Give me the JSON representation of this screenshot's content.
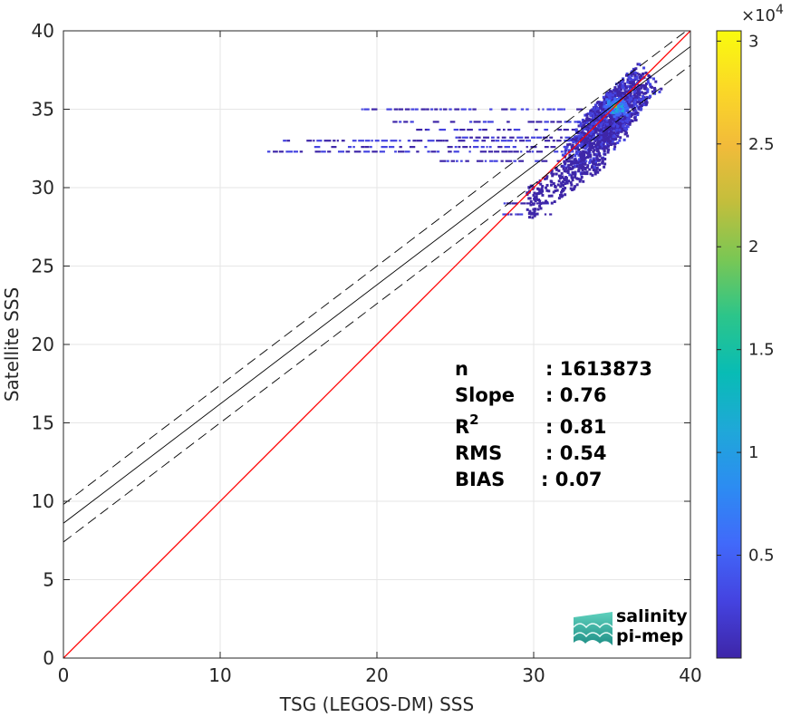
{
  "chart_data": {
    "type": "heatmap",
    "xlabel": "TSG (LEGOS-DM) SSS",
    "ylabel": "Satellite SSS",
    "xlim": [
      0,
      40
    ],
    "ylim": [
      0,
      40
    ],
    "xticks": [
      0,
      10,
      20,
      30,
      40
    ],
    "yticks": [
      0,
      5,
      10,
      15,
      20,
      25,
      30,
      35,
      40
    ],
    "grid": true,
    "density_core": [
      {
        "x": 33.5,
        "y": 32.5
      },
      {
        "x": 34.5,
        "y": 34.0
      },
      {
        "x": 35.2,
        "y": 35.2
      },
      {
        "x": 36.0,
        "y": 35.8
      }
    ],
    "density_peak": {
      "x": 35.2,
      "y": 35.2
    },
    "horizontal_streaks": [
      {
        "y": 35.0,
        "x": [
          19.0,
          36.0
        ]
      },
      {
        "y": 34.2,
        "x": [
          21.0,
          36.0
        ]
      },
      {
        "y": 33.7,
        "x": [
          22.5,
          35.5
        ]
      },
      {
        "y": 33.2,
        "x": [
          25.0,
          35.0
        ]
      },
      {
        "y": 33.0,
        "x": [
          14.0,
          34.5
        ]
      },
      {
        "y": 32.6,
        "x": [
          16.0,
          34.0
        ]
      },
      {
        "y": 32.3,
        "x": [
          13.0,
          33.5
        ]
      },
      {
        "y": 31.7,
        "x": [
          24.0,
          34.0
        ]
      },
      {
        "y": 29.0,
        "x": [
          27.5,
          31.0
        ]
      },
      {
        "y": 28.3,
        "x": [
          28.0,
          31.0
        ]
      }
    ],
    "reference_line": {
      "slope": 1,
      "intercept": 0,
      "color": "#ff0000"
    },
    "fit_line": {
      "slope": 0.76,
      "intercept": 8.6
    },
    "fit_band": {
      "slope": 0.76,
      "offsets": [
        1.2,
        -1.2
      ]
    },
    "colorbar": {
      "min": 0,
      "max": 30500,
      "ticks": [
        5000,
        10000,
        15000,
        20000,
        25000,
        30000
      ],
      "tick_labels": [
        "0.5",
        "1",
        "1.5",
        "2",
        "2.5",
        "3"
      ],
      "exponent_label": "×10",
      "exponent_power": "4",
      "colormap": [
        "#3e26a8",
        "#4443e0",
        "#4169fa",
        "#2c8cf2",
        "#1fa8d8",
        "#08bcb5",
        "#2cc58a",
        "#7ac754",
        "#c3be3c",
        "#f2bb3a",
        "#fbd926",
        "#f9fb0e"
      ]
    },
    "stats": [
      {
        "label": "n",
        "value": ": 1613873"
      },
      {
        "label": "Slope",
        "value": ": 0.76"
      },
      {
        "label": "R",
        "sup": "2",
        "value": ": 0.81"
      },
      {
        "label": "RMS",
        "value": ": 0.54"
      },
      {
        "label": "BIAS",
        "value": ": 0.07"
      }
    ]
  },
  "logo": {
    "line1": "salinity",
    "line2": "pi-mep",
    "color1": "#1aaa9a",
    "color2": "#1f6f73"
  }
}
